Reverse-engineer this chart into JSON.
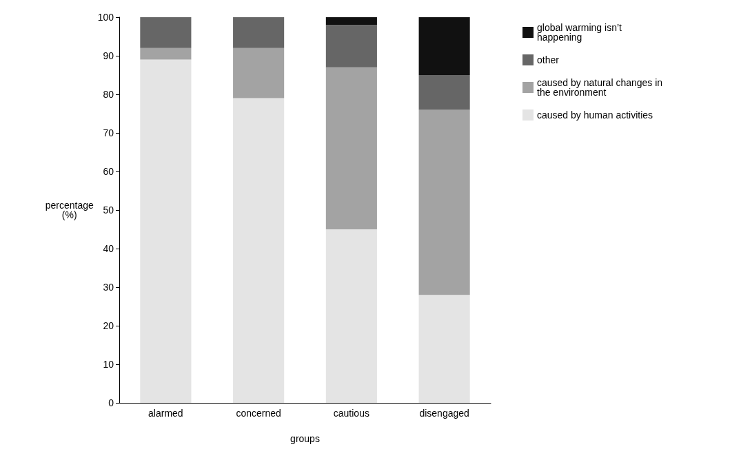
{
  "chart_data": {
    "type": "bar",
    "stacked": true,
    "xlabel": "groups",
    "ylabel": "percentage\n(%)",
    "categories": [
      "alarmed",
      "concerned",
      "cautious",
      "disengaged"
    ],
    "series": [
      {
        "name": "caused by human activities",
        "color": "#e4e4e4",
        "values": [
          89,
          79,
          45,
          28
        ]
      },
      {
        "name": "caused by natural changes in the environment",
        "color": "#a3a3a3",
        "values": [
          3,
          13,
          42,
          48
        ]
      },
      {
        "name": "other",
        "color": "#666666",
        "values": [
          8,
          8,
          11,
          9
        ]
      },
      {
        "name": "global warming isn’t happening",
        "color": "#111111",
        "values": [
          0,
          0,
          2,
          15
        ]
      }
    ],
    "ylim": [
      0,
      100
    ],
    "yticks": [
      0,
      10,
      20,
      30,
      40,
      50,
      60,
      70,
      80,
      90,
      100
    ],
    "grid": false,
    "legend": "right"
  }
}
